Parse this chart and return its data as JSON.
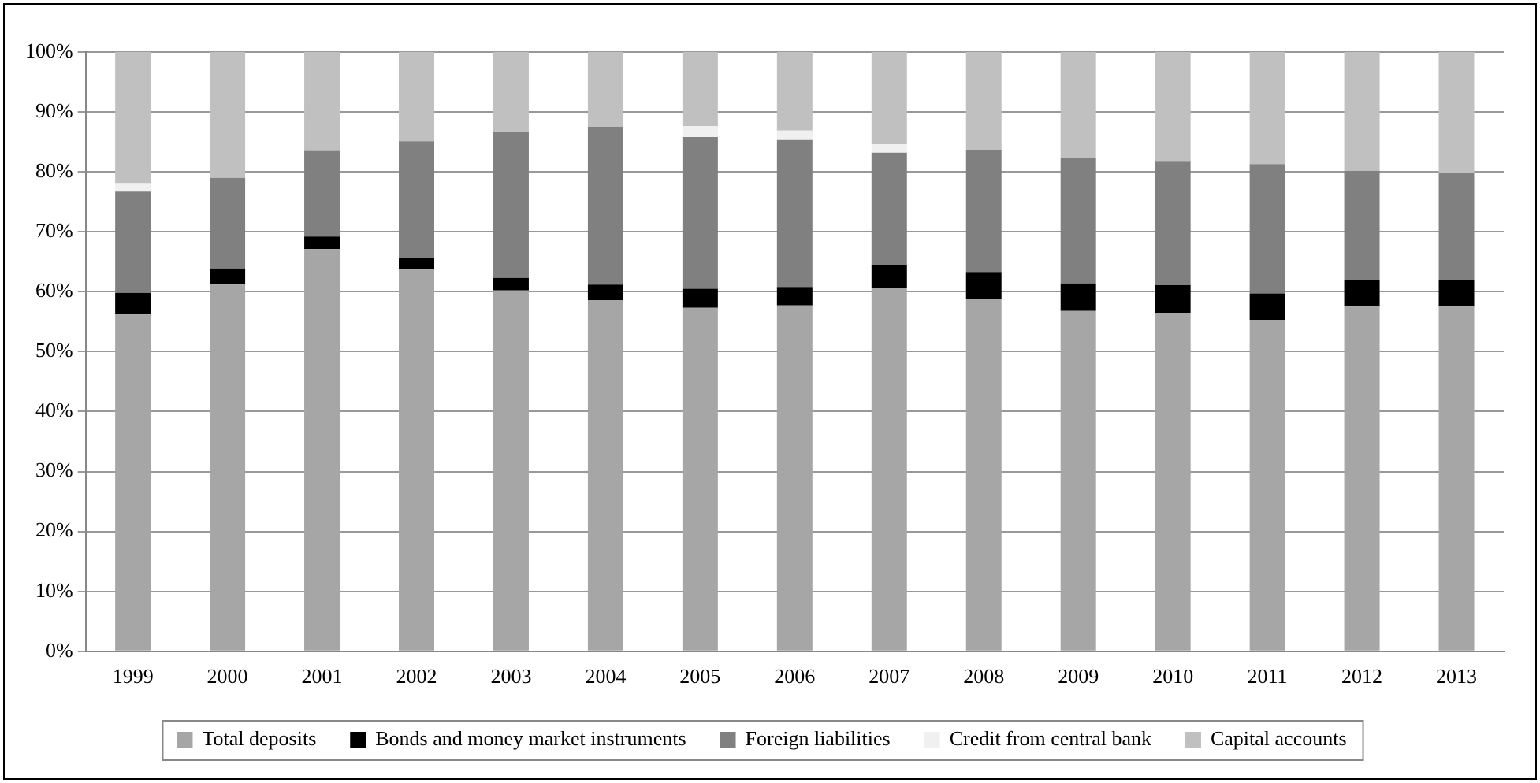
{
  "chart_data": {
    "type": "bar",
    "stacked": true,
    "categories": [
      "1999",
      "2000",
      "2001",
      "2002",
      "2003",
      "2004",
      "2005",
      "2006",
      "2007",
      "2008",
      "2009",
      "2010",
      "2011",
      "2012",
      "2013"
    ],
    "ylim": [
      0,
      100
    ],
    "yticks": [
      {
        "value": 0,
        "label": "0%"
      },
      {
        "value": 10,
        "label": "10%"
      },
      {
        "value": 20,
        "label": "20%"
      },
      {
        "value": 30,
        "label": "30%"
      },
      {
        "value": 40,
        "label": "40%"
      },
      {
        "value": 50,
        "label": "50%"
      },
      {
        "value": 60,
        "label": "60%"
      },
      {
        "value": 70,
        "label": "70%"
      },
      {
        "value": 80,
        "label": "80%"
      },
      {
        "value": 90,
        "label": "90%"
      },
      {
        "value": 100,
        "label": "100%"
      }
    ],
    "grid": "y",
    "legend": "bottom",
    "series": [
      {
        "name": "Total deposits",
        "color": "#a6a6a6",
        "values": [
          56.2,
          61.2,
          67.1,
          63.7,
          60.2,
          58.6,
          57.3,
          57.7,
          60.7,
          58.8,
          56.8,
          56.5,
          55.3,
          57.5,
          57.5
        ]
      },
      {
        "name": "Bonds and money market instruments",
        "color": "#000000",
        "values": [
          3.6,
          2.7,
          2.1,
          1.9,
          2.1,
          2.6,
          3.2,
          3.1,
          3.7,
          4.5,
          4.6,
          4.6,
          4.4,
          4.5,
          4.4
        ]
      },
      {
        "name": "Foreign liabilities",
        "color": "#808080",
        "values": [
          16.9,
          15.1,
          14.3,
          19.5,
          24.4,
          26.3,
          25.3,
          24.5,
          18.8,
          20.3,
          21.0,
          20.6,
          21.6,
          18.2,
          18.0
        ]
      },
      {
        "name": "Credit from central bank",
        "color": "#f0f0f0",
        "values": [
          1.4,
          0,
          0,
          0,
          0,
          0,
          1.8,
          1.6,
          1.4,
          0,
          0,
          0,
          0,
          0,
          0
        ]
      },
      {
        "name": "Capital accounts",
        "color": "#c0c0c0",
        "values": [
          21.9,
          21.0,
          16.5,
          14.9,
          13.3,
          12.5,
          12.4,
          13.1,
          15.4,
          16.4,
          17.6,
          18.3,
          18.7,
          19.8,
          20.1
        ]
      }
    ]
  }
}
